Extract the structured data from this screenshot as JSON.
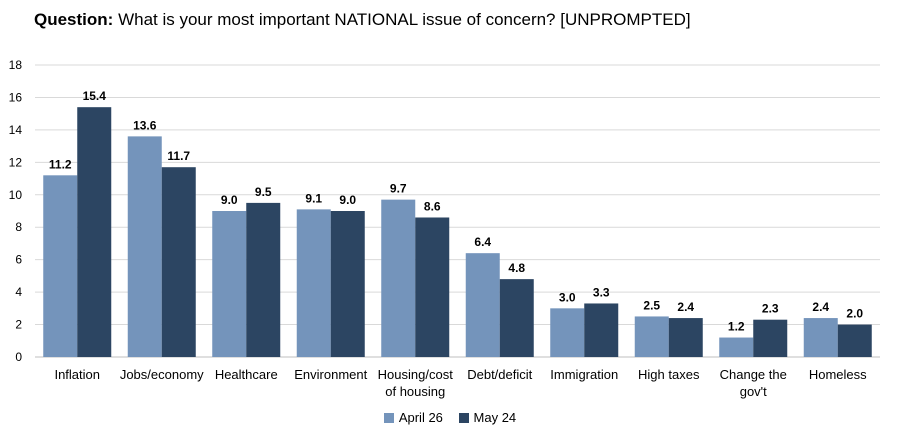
{
  "title": {
    "prefix": "Question:",
    "text": "What is your most important NATIONAL issue of concern? [UNPROMPTED]"
  },
  "colors": {
    "april": "#7494bb",
    "may": "#2c4562",
    "grid": "#d9d9d9",
    "axis": "#bfbfbf"
  },
  "chart_data": {
    "type": "bar",
    "title": "What is your most important NATIONAL issue of concern? [UNPROMPTED]",
    "categories": [
      [
        "Inflation"
      ],
      [
        "Jobs/economy"
      ],
      [
        "Healthcare"
      ],
      [
        "Environment"
      ],
      [
        "Housing/cost",
        "of housing"
      ],
      [
        "Debt/deficit"
      ],
      [
        "Immigration"
      ],
      [
        "High taxes"
      ],
      [
        "Change the",
        "gov't"
      ],
      [
        "Homeless"
      ]
    ],
    "series": [
      {
        "name": "April 26",
        "values": [
          11.2,
          13.6,
          9.0,
          9.1,
          9.7,
          6.4,
          3.0,
          2.5,
          1.2,
          2.4
        ]
      },
      {
        "name": "May 24",
        "values": [
          15.4,
          11.7,
          9.5,
          9.0,
          8.6,
          4.8,
          3.3,
          2.4,
          2.3,
          2.0
        ]
      }
    ],
    "ylim": [
      0,
      18
    ],
    "yticks": [
      0,
      2,
      4,
      6,
      8,
      10,
      12,
      14,
      16,
      18
    ],
    "xlabel": "",
    "ylabel": "",
    "grid": true,
    "legend_position": "bottom"
  }
}
